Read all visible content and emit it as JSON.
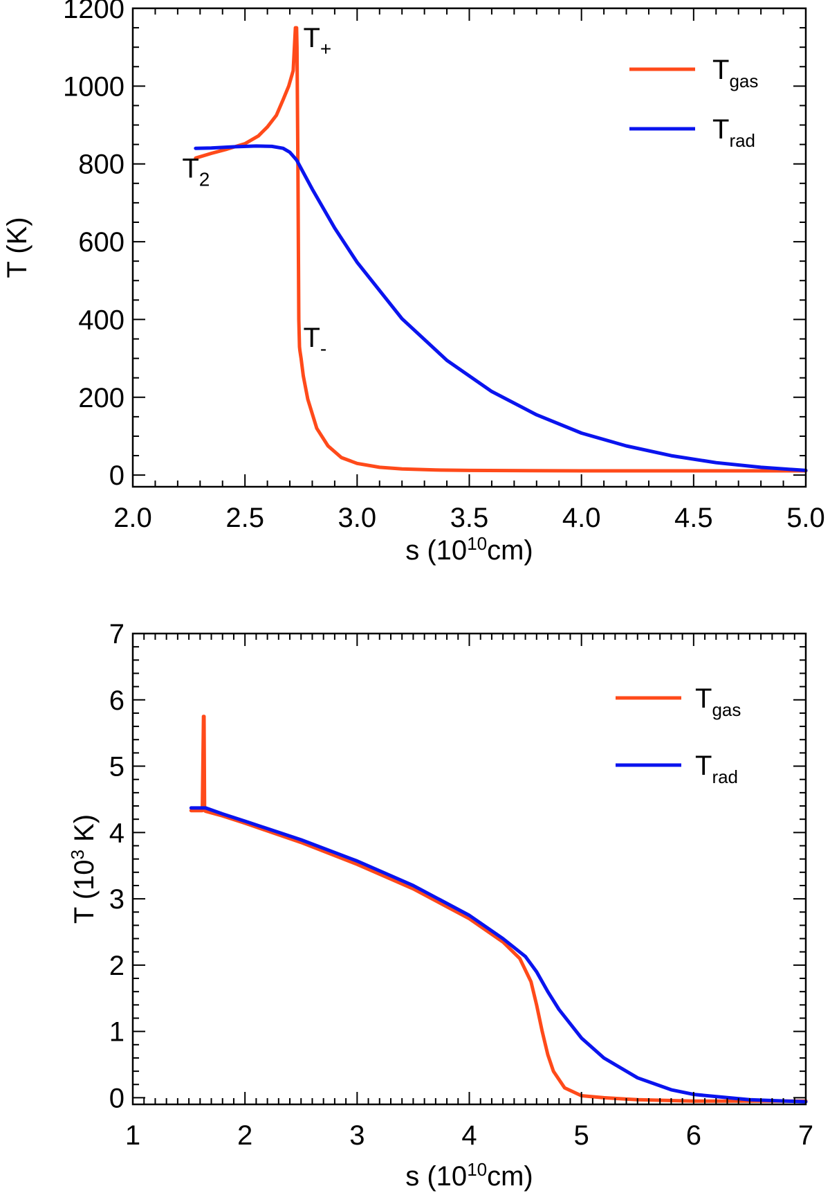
{
  "colors": {
    "gas": "#ff4a1a",
    "rad": "#0a14ee"
  },
  "chart_data": [
    {
      "type": "line",
      "xlabel": "s (10",
      "xlabel_sup": "10",
      "xlabel_end": "cm)",
      "ylabel": "T (K)",
      "xlim": [
        2.0,
        5.0
      ],
      "ylim": [
        -30,
        1200
      ],
      "xticks": [
        2.0,
        2.5,
        3.0,
        3.5,
        4.0,
        4.5,
        5.0
      ],
      "xtick_labels": [
        "2.0",
        "2.5",
        "3.0",
        "3.5",
        "4.0",
        "4.5",
        "5.0"
      ],
      "yticks": [
        0,
        200,
        400,
        600,
        800,
        1000,
        1200
      ],
      "ytick_labels": [
        "0",
        "200",
        "400",
        "600",
        "800",
        "1000",
        "1200"
      ],
      "legend": [
        {
          "base": "T",
          "sub": "gas",
          "series": "gas"
        },
        {
          "base": "T",
          "sub": "rad",
          "series": "rad"
        }
      ],
      "annotations": [
        {
          "base": "T",
          "sub": "+",
          "x": 2.76,
          "y": 1100
        },
        {
          "base": "T",
          "sub": "2",
          "x": 2.22,
          "y": 765
        },
        {
          "base": "T",
          "sub": "-",
          "x": 2.76,
          "y": 330
        }
      ],
      "series": [
        {
          "name": "T_gas",
          "key": "gas",
          "x": [
            2.28,
            2.35,
            2.42,
            2.5,
            2.56,
            2.6,
            2.64,
            2.67,
            2.695,
            2.715,
            2.725,
            2.73,
            2.732,
            2.736,
            2.74,
            2.743,
            2.745,
            2.75,
            2.76,
            2.78,
            2.82,
            2.87,
            2.93,
            3.0,
            3.1,
            3.2,
            3.35,
            3.5,
            4.0,
            4.5,
            5.0
          ],
          "values": [
            815,
            827,
            838,
            852,
            872,
            895,
            925,
            965,
            1000,
            1040,
            1150,
            1150,
            1100,
            800,
            400,
            330,
            320,
            300,
            255,
            195,
            120,
            75,
            45,
            30,
            20,
            16,
            13,
            12,
            11,
            11,
            11
          ]
        },
        {
          "name": "T_rad",
          "key": "rad",
          "x": [
            2.28,
            2.35,
            2.45,
            2.55,
            2.62,
            2.67,
            2.7,
            2.73,
            2.76,
            2.8,
            2.9,
            3.0,
            3.2,
            3.4,
            3.6,
            3.8,
            4.0,
            4.2,
            4.4,
            4.6,
            4.8,
            5.0
          ],
          "values": [
            840,
            841,
            844,
            846,
            845,
            840,
            830,
            810,
            778,
            735,
            635,
            547,
            402,
            295,
            215,
            155,
            108,
            75,
            50,
            32,
            20,
            12
          ]
        }
      ]
    },
    {
      "type": "line",
      "xlabel": "s (10",
      "xlabel_sup": "10",
      "xlabel_end": "cm)",
      "ylabel": "T (10",
      "ylabel_sup": "3",
      "ylabel_end": " K)",
      "xlim": [
        1,
        7
      ],
      "ylim": [
        -0.1,
        7
      ],
      "xticks": [
        1,
        2,
        3,
        4,
        5,
        6,
        7
      ],
      "xtick_labels": [
        "1",
        "2",
        "3",
        "4",
        "5",
        "6",
        "7"
      ],
      "yticks": [
        0,
        1,
        2,
        3,
        4,
        5,
        6,
        7
      ],
      "ytick_labels": [
        "0",
        "1",
        "2",
        "3",
        "4",
        "5",
        "6",
        "7"
      ],
      "legend": [
        {
          "base": "T",
          "sub": "gas",
          "series": "gas"
        },
        {
          "base": "T",
          "sub": "rad",
          "series": "rad"
        }
      ],
      "annotations": [],
      "series": [
        {
          "name": "T_gas",
          "key": "gas",
          "x": [
            1.52,
            1.6,
            1.62,
            1.63,
            1.635,
            1.64,
            1.65,
            1.8,
            2.0,
            2.5,
            3.0,
            3.5,
            4.0,
            4.3,
            4.45,
            4.55,
            4.6,
            4.65,
            4.7,
            4.75,
            4.85,
            5.0,
            5.2,
            5.5,
            6.0,
            7.0
          ],
          "values": [
            4.33,
            4.33,
            4.33,
            5.75,
            5.75,
            4.33,
            4.32,
            4.25,
            4.14,
            3.85,
            3.52,
            3.15,
            2.7,
            2.35,
            2.1,
            1.75,
            1.4,
            1.0,
            0.65,
            0.4,
            0.15,
            0.03,
            0.0,
            -0.03,
            -0.05,
            -0.05
          ]
        },
        {
          "name": "T_rad",
          "key": "rad",
          "x": [
            1.52,
            1.6,
            1.65,
            1.8,
            2.0,
            2.5,
            3.0,
            3.5,
            4.0,
            4.3,
            4.5,
            4.6,
            4.7,
            4.8,
            5.0,
            5.2,
            5.5,
            5.8,
            6.0,
            6.5,
            7.0
          ],
          "values": [
            4.37,
            4.37,
            4.37,
            4.28,
            4.17,
            3.89,
            3.57,
            3.2,
            2.75,
            2.4,
            2.13,
            1.9,
            1.6,
            1.33,
            0.9,
            0.6,
            0.3,
            0.12,
            0.05,
            -0.03,
            -0.06
          ]
        }
      ]
    }
  ]
}
